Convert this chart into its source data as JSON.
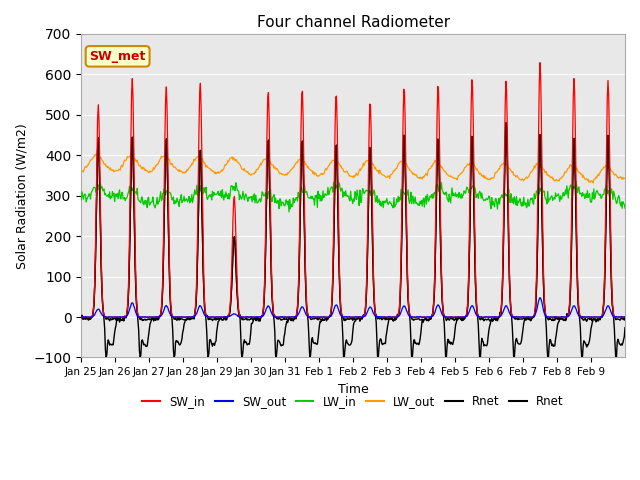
{
  "title": "Four channel Radiometer",
  "xlabel": "Time",
  "ylabel": "Solar Radiation (W/m2)",
  "ylim": [
    -100,
    700
  ],
  "yticks": [
    -100,
    0,
    100,
    200,
    300,
    400,
    500,
    600,
    700
  ],
  "x_tick_labels": [
    "Jan 25",
    "Jan 26",
    "Jan 27",
    "Jan 28",
    "Jan 29",
    "Jan 30",
    "Jan 31",
    "Feb 1",
    "Feb 2",
    "Feb 3",
    "Feb 4",
    "Feb 5",
    "Feb 6",
    "Feb 7",
    "Feb 8",
    "Feb 9"
  ],
  "bg_color": "#e8e8e8",
  "annotation_text": "SW_met",
  "annotation_color": "#cc0000",
  "annotation_bg": "#ffffcc",
  "annotation_border": "#cc8800",
  "legend_entries": [
    "SW_in",
    "SW_out",
    "LW_in",
    "LW_out",
    "Rnet",
    "Rnet"
  ],
  "legend_colors": [
    "#ff0000",
    "#0000ff",
    "#00cc00",
    "#ff9900",
    "#000000",
    "#000000"
  ],
  "line_colors": {
    "SW_in": "#ff0000",
    "SW_out": "#0000ff",
    "LW_in": "#00cc00",
    "LW_out": "#ff9900",
    "Rnet1": "#000000",
    "Rnet2": "#000000"
  }
}
